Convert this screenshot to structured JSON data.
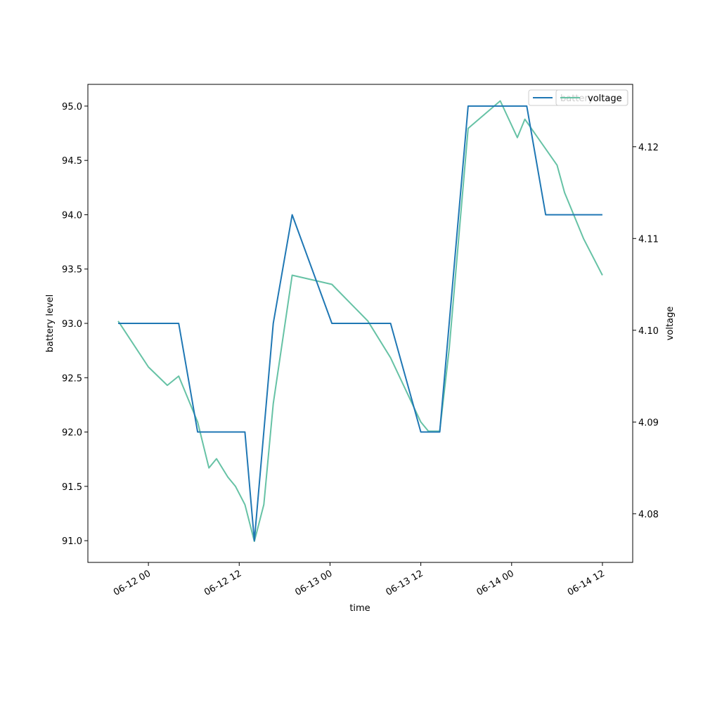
{
  "chart_data": {
    "type": "line",
    "xlabel": "time",
    "ylabel": "battery level",
    "y2label": "voltage",
    "x_ticks": [
      "06-12 00",
      "06-12 12",
      "06-13 00",
      "06-13 12",
      "06-14 00",
      "06-14 12"
    ],
    "xlim": [
      "2023-06-11 16:00",
      "2023-06-14 16:00"
    ],
    "ylim": [
      90.8,
      95.2
    ],
    "y_ticks": [
      91.0,
      91.5,
      92.0,
      92.5,
      93.0,
      93.5,
      94.0,
      94.5,
      95.0
    ],
    "y2lim": [
      4.0747,
      4.1268
    ],
    "y2_ticks": [
      4.08,
      4.09,
      4.1,
      4.11,
      4.12
    ],
    "legend_placement": "top-right",
    "colors": {
      "battery": "#1f77b4",
      "voltage": "#66c2a5"
    },
    "series": [
      {
        "name": "battery",
        "axis": "left",
        "points": [
          [
            "2023-06-11 20:00",
            93
          ],
          [
            "2023-06-12 00:00",
            93
          ],
          [
            "2023-06-12 04:00",
            93
          ],
          [
            "2023-06-12 06:30",
            92
          ],
          [
            "2023-06-12 10:00",
            92
          ],
          [
            "2023-06-12 12:45",
            92
          ],
          [
            "2023-06-12 14:00",
            91
          ],
          [
            "2023-06-12 16:30",
            93
          ],
          [
            "2023-06-12 19:00",
            94
          ],
          [
            "2023-06-13 00:15",
            93
          ],
          [
            "2023-06-13 05:00",
            93
          ],
          [
            "2023-06-13 08:00",
            93
          ],
          [
            "2023-06-13 12:00",
            92
          ],
          [
            "2023-06-13 14:30",
            92
          ],
          [
            "2023-06-13 18:15",
            95
          ],
          [
            "2023-06-13 22:00",
            95
          ],
          [
            "2023-06-14 02:00",
            95
          ],
          [
            "2023-06-14 04:30",
            94
          ],
          [
            "2023-06-14 08:00",
            94
          ],
          [
            "2023-06-14 12:00",
            94
          ]
        ]
      },
      {
        "name": "voltage",
        "axis": "right",
        "points": [
          [
            "2023-06-11 20:00",
            4.101
          ],
          [
            "2023-06-12 00:00",
            4.096
          ],
          [
            "2023-06-12 02:30",
            4.094
          ],
          [
            "2023-06-12 04:00",
            4.095
          ],
          [
            "2023-06-12 06:30",
            4.09
          ],
          [
            "2023-06-12 08:00",
            4.085
          ],
          [
            "2023-06-12 09:00",
            4.086
          ],
          [
            "2023-06-12 10:30",
            4.084
          ],
          [
            "2023-06-12 11:30",
            4.083
          ],
          [
            "2023-06-12 12:45",
            4.081
          ],
          [
            "2023-06-12 14:00",
            4.077
          ],
          [
            "2023-06-12 15:15",
            4.081
          ],
          [
            "2023-06-12 16:30",
            4.092
          ],
          [
            "2023-06-12 19:00",
            4.106
          ],
          [
            "2023-06-13 00:15",
            4.105
          ],
          [
            "2023-06-13 05:00",
            4.101
          ],
          [
            "2023-06-13 08:00",
            4.097
          ],
          [
            "2023-06-13 12:00",
            4.09
          ],
          [
            "2023-06-13 13:00",
            4.089
          ],
          [
            "2023-06-13 14:30",
            4.089
          ],
          [
            "2023-06-13 15:45",
            4.098
          ],
          [
            "2023-06-13 18:15",
            4.122
          ],
          [
            "2023-06-13 22:30",
            4.125
          ],
          [
            "2023-06-14 00:45",
            4.121
          ],
          [
            "2023-06-14 01:45",
            4.123
          ],
          [
            "2023-06-14 06:00",
            4.118
          ],
          [
            "2023-06-14 07:00",
            4.115
          ],
          [
            "2023-06-14 09:30",
            4.11
          ],
          [
            "2023-06-14 12:00",
            4.106
          ]
        ]
      }
    ]
  }
}
